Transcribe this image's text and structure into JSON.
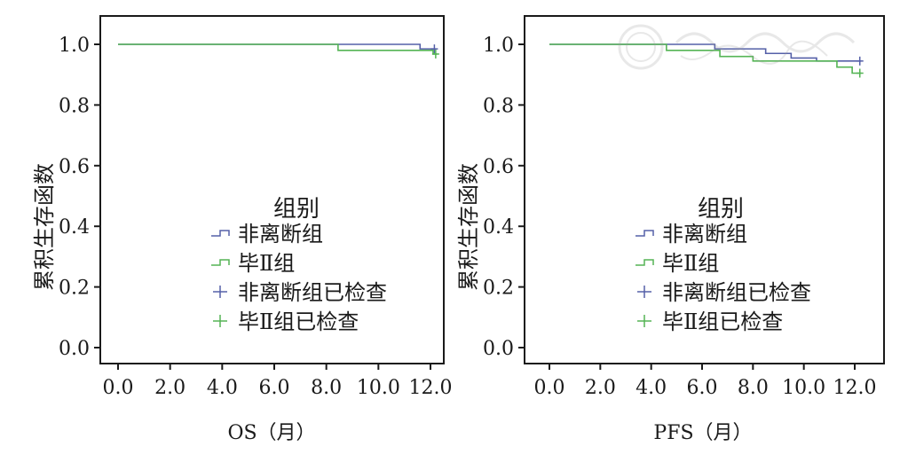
{
  "colors": {
    "nonsep": "#5560a8",
    "billroth": "#55b455",
    "axis": "#1a1a1a"
  },
  "legend": {
    "title": "组别",
    "items": [
      {
        "label": "非离断组",
        "marker": "step",
        "series": "nonsep"
      },
      {
        "label": "毕Ⅱ组",
        "marker": "step",
        "series": "billroth"
      },
      {
        "label": "非离断组已检查",
        "marker": "plus",
        "series": "nonsep"
      },
      {
        "label": "毕Ⅱ组已检查",
        "marker": "plus",
        "series": "billroth"
      }
    ]
  },
  "chart_data": [
    {
      "type": "line",
      "ylabel": "累积生存函数",
      "xlabel": "OS（月）",
      "xlim": [
        0.0,
        12.0
      ],
      "ylim": [
        0.0,
        1.0
      ],
      "xticks": [
        "0.0",
        "2.0",
        "4.0",
        "6.0",
        "8.0",
        "10.0",
        "12.0"
      ],
      "yticks": [
        "0.0",
        "0.2",
        "0.4",
        "0.6",
        "0.8",
        "1.0"
      ],
      "series": [
        {
          "name": "非离断组",
          "color_key": "nonsep",
          "steps": [
            [
              0.0,
              1.0
            ],
            [
              11.6,
              0.985
            ]
          ],
          "censored": [
            [
              12.15,
              0.985
            ]
          ],
          "end_x": 12.2
        },
        {
          "name": "毕Ⅱ组",
          "color_key": "billroth",
          "steps": [
            [
              0.0,
              1.0
            ],
            [
              8.45,
              0.98
            ],
            [
              12.1,
              0.968
            ]
          ],
          "censored": [
            [
              12.2,
              0.968
            ]
          ],
          "end_x": 12.25
        }
      ]
    },
    {
      "type": "line",
      "ylabel": "累积生存函数",
      "xlabel": "PFS（月）",
      "xlim": [
        0.0,
        12.0
      ],
      "ylim": [
        0.0,
        1.0
      ],
      "xticks": [
        "0.0",
        "2.0",
        "4.0",
        "6.0",
        "8.0",
        "10.0",
        "12.0"
      ],
      "yticks": [
        "0.0",
        "0.2",
        "0.4",
        "0.6",
        "0.8",
        "1.0"
      ],
      "series": [
        {
          "name": "非离断组",
          "color_key": "nonsep",
          "steps": [
            [
              0.0,
              1.0
            ],
            [
              6.5,
              0.985
            ],
            [
              8.5,
              0.97
            ],
            [
              9.5,
              0.955
            ],
            [
              10.5,
              0.945
            ]
          ],
          "censored": [
            [
              12.2,
              0.945
            ]
          ],
          "end_x": 12.25
        },
        {
          "name": "毕Ⅱ组",
          "color_key": "billroth",
          "steps": [
            [
              0.0,
              1.0
            ],
            [
              4.6,
              0.98
            ],
            [
              6.7,
              0.96
            ],
            [
              7.3,
              0.96
            ],
            [
              8.0,
              0.945
            ],
            [
              11.3,
              0.925
            ],
            [
              11.9,
              0.905
            ]
          ],
          "censored": [
            [
              12.2,
              0.905
            ]
          ],
          "end_x": 12.25
        }
      ]
    }
  ]
}
